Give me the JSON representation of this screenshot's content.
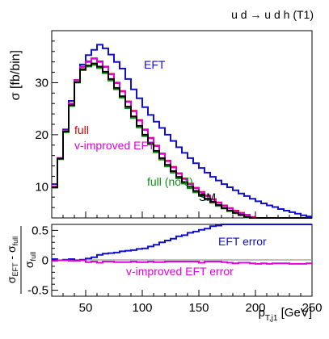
{
  "chart_data": [
    {
      "type": "line",
      "title": "u d → u d h (T1)",
      "xlabel": "p_T,j1 [GeV]",
      "ylabel": "σ [fb/bin]",
      "xlim": [
        20,
        250
      ],
      "ylim": [
        4,
        40
      ],
      "xticks": [
        50,
        100,
        150,
        200,
        250
      ],
      "yticks": [
        10,
        20,
        30
      ],
      "bin_edges": [
        20,
        25,
        30,
        35,
        40,
        45,
        50,
        55,
        60,
        65,
        70,
        75,
        80,
        85,
        90,
        95,
        100,
        105,
        110,
        115,
        120,
        125,
        130,
        135,
        140,
        145,
        150,
        155,
        160,
        165,
        170,
        175,
        180,
        185,
        190,
        195,
        200,
        205,
        210,
        215,
        220,
        225,
        230,
        235,
        240,
        245,
        250
      ],
      "series": [
        {
          "name": "EFT",
          "color": "#1010d0",
          "values": [
            10.5,
            15.5,
            21.0,
            26.5,
            30.5,
            33.5,
            35.3,
            36.3,
            37.3,
            36.6,
            35.4,
            34.0,
            32.7,
            30.7,
            28.7,
            27.0,
            25.3,
            23.8,
            22.5,
            21.3,
            20.0,
            18.8,
            17.6,
            16.5,
            15.5,
            14.5,
            13.6,
            12.7,
            11.9,
            11.2,
            10.5,
            9.9,
            9.3,
            8.7,
            8.2,
            7.7,
            7.2,
            6.8,
            6.4,
            6.1,
            5.7,
            5.4,
            5.1,
            4.8,
            4.5,
            4.3
          ]
        },
        {
          "name": "full",
          "color": "#d00000",
          "values": [
            10.0,
            15.5,
            20.8,
            26.0,
            30.5,
            33.1,
            34.1,
            34.7,
            34.1,
            33.1,
            31.7,
            30.0,
            28.4,
            26.4,
            24.6,
            22.8,
            21.0,
            19.4,
            17.9,
            16.4,
            15.0,
            13.8,
            12.6,
            11.6,
            10.6,
            9.8,
            9.0,
            8.3,
            7.6,
            7.0,
            6.4,
            5.9,
            5.4,
            5.0,
            4.6,
            4.2,
            3.9,
            3.6,
            3.3,
            3.0,
            2.8,
            2.6,
            2.4,
            2.2,
            2.0,
            1.9
          ]
        },
        {
          "name": "v-improved EFT",
          "color": "#e000e0",
          "values": [
            10.0,
            15.5,
            20.8,
            26.0,
            30.5,
            33.0,
            34.0,
            34.6,
            34.0,
            33.0,
            31.6,
            29.9,
            28.3,
            26.3,
            24.5,
            22.7,
            20.9,
            19.3,
            17.8,
            16.3,
            14.9,
            13.7,
            12.5,
            11.5,
            10.5,
            9.7,
            8.9,
            8.2,
            7.5,
            6.9,
            6.3,
            5.8,
            5.3,
            4.9,
            4.5,
            4.1,
            3.8,
            3.5,
            3.2,
            2.9,
            2.7,
            2.5,
            2.3,
            2.1,
            1.9,
            1.8
          ]
        },
        {
          "name": "full (no ξ)",
          "color": "#109010",
          "values": [
            9.8,
            15.3,
            20.5,
            25.5,
            30.0,
            32.4,
            33.1,
            33.4,
            32.8,
            31.8,
            30.4,
            28.7,
            27.1,
            25.1,
            23.2,
            21.4,
            19.7,
            18.1,
            16.6,
            15.2,
            13.9,
            12.7,
            11.6,
            10.6,
            9.7,
            8.9,
            8.2,
            7.5,
            6.9,
            6.3,
            5.8,
            5.3,
            4.9,
            4.5,
            4.1,
            3.8,
            3.5,
            3.2,
            2.9,
            2.7,
            2.5,
            2.3,
            2.1,
            1.9,
            1.8,
            1.6
          ]
        },
        {
          "name": "SM",
          "color": "#000000",
          "values": [
            9.9,
            15.4,
            20.6,
            25.7,
            30.1,
            32.6,
            33.3,
            33.7,
            33.1,
            32.1,
            30.7,
            29.0,
            27.4,
            25.4,
            23.5,
            21.7,
            20.0,
            18.4,
            16.9,
            15.5,
            14.2,
            13.0,
            11.9,
            10.9,
            10.0,
            9.2,
            8.4,
            7.7,
            7.1,
            6.5,
            5.9,
            5.4,
            5.0,
            4.6,
            4.2,
            3.9,
            3.6,
            3.3,
            3.0,
            2.8,
            2.6,
            2.4,
            2.2,
            2.0,
            1.8,
            1.7
          ]
        }
      ],
      "annotations": [
        "EFT",
        "full",
        "v-improved EFT",
        "full (no ξ)",
        "SM"
      ]
    },
    {
      "type": "line",
      "xlabel": "p_T,j1 [GeV]",
      "ylabel": "(σ_EFT − σ_full) / σ_full",
      "xlim": [
        20,
        250
      ],
      "ylim": [
        -0.6,
        0.6
      ],
      "xticks": [
        50,
        100,
        150,
        200,
        250
      ],
      "yticks": [
        -0.5,
        0,
        0.5
      ],
      "reference_line": 0,
      "series": [
        {
          "name": "EFT error",
          "color": "#1010d0",
          "values": [
            0.02,
            0.0,
            0.01,
            0.02,
            0.0,
            0.01,
            0.03,
            0.05,
            0.09,
            0.11,
            0.12,
            0.13,
            0.15,
            0.16,
            0.17,
            0.19,
            0.2,
            0.23,
            0.26,
            0.3,
            0.33,
            0.36,
            0.4,
            0.42,
            0.46,
            0.48,
            0.51,
            0.53,
            0.57,
            0.58,
            0.6,
            0.62,
            0.62,
            0.62,
            0.63,
            0.63,
            0.63,
            0.63,
            0.64,
            0.64,
            0.64,
            0.64,
            0.64,
            0.64,
            0.64,
            0.64
          ]
        },
        {
          "name": "v-improved EFT error",
          "color": "#e000e0",
          "values": [
            -0.01,
            0.0,
            0.0,
            -0.01,
            -0.01,
            0.0,
            -0.03,
            -0.02,
            -0.04,
            -0.02,
            -0.02,
            -0.03,
            -0.03,
            -0.03,
            -0.02,
            -0.03,
            -0.03,
            -0.02,
            -0.03,
            -0.03,
            -0.02,
            -0.02,
            -0.02,
            -0.02,
            -0.02,
            -0.02,
            -0.04,
            -0.02,
            -0.02,
            -0.02,
            -0.03,
            -0.04,
            -0.05,
            -0.04,
            -0.04,
            -0.05,
            -0.06,
            -0.05,
            -0.06,
            -0.05,
            -0.05,
            -0.05,
            -0.06,
            -0.06,
            -0.06,
            -0.05
          ]
        }
      ],
      "annotations": [
        "EFT error",
        "v-improved EFT error"
      ]
    }
  ]
}
